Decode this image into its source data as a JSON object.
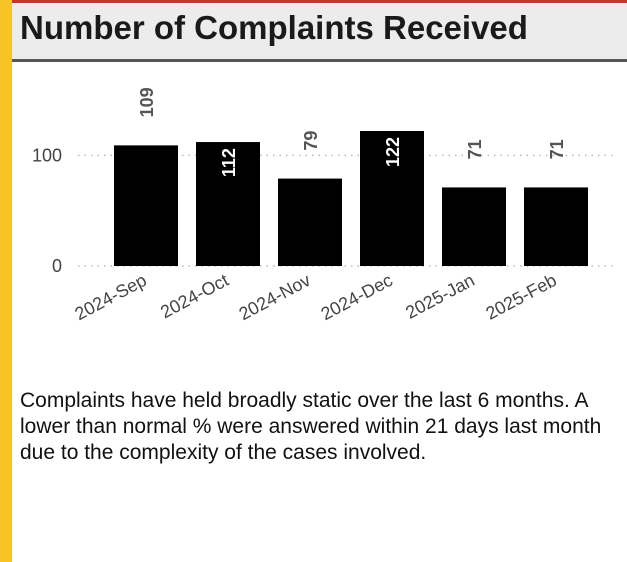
{
  "header": {
    "title": "Number of Complaints Received"
  },
  "chart_data": {
    "type": "bar",
    "categories": [
      "2024-Sep",
      "2024-Oct",
      "2024-Nov",
      "2024-Dec",
      "2025-Jan",
      "2025-Feb"
    ],
    "values": [
      109,
      112,
      79,
      122,
      71,
      71
    ],
    "color": "#000000",
    "ylim": [
      0,
      150
    ],
    "yticks": [
      0,
      100
    ],
    "grid": true
  },
  "commentary": "Complaints have held broadly static over the last 6 months.  A lower than normal % were answered within 21 days last month due to the complexity of the cases involved."
}
